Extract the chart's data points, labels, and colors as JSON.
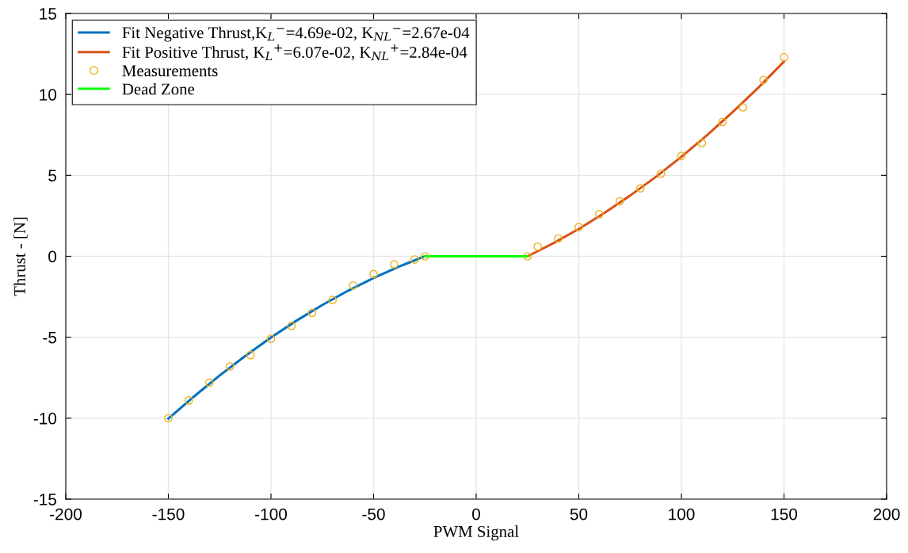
{
  "chart_data": {
    "type": "line",
    "xlabel": "PWM Signal",
    "ylabel": "Thrust - [N]",
    "xlim": [
      -200,
      200
    ],
    "xticks": [
      -200,
      -150,
      -100,
      -50,
      0,
      50,
      100,
      150,
      200
    ],
    "ylim": [
      -15,
      15
    ],
    "yticks": [
      -15,
      -10,
      -5,
      0,
      5,
      10,
      15
    ],
    "grid": true,
    "legend": "top left",
    "series": [
      {
        "name": "Fit Negative Thrust,K$_{L}$$^{−}$=4.69e-02, K$_{NL}$$^{−}$=2.67e-04",
        "color": "#0072bd",
        "x": [
          -150,
          -137.5,
          -125,
          -112.5,
          -100,
          -87.5,
          -75,
          -62.5,
          -50,
          -37.5,
          -25
        ],
        "values": [
          -10.03,
          -8.66,
          -7.36,
          -6.15,
          -5.02,
          -3.97,
          -3.01,
          -2.13,
          -1.34,
          -0.63,
          0
        ]
      },
      {
        "name": "Fit Positive Thrust, K$_{L}$$^{+}$=6.07e-02, K$_{NL}$$^{+}$=2.84e-04",
        "color": "#d95319",
        "x": [
          25,
          37.5,
          50,
          62.5,
          75,
          87.5,
          100,
          112.5,
          125,
          137.5,
          150
        ],
        "values": [
          0,
          0.8,
          1.69,
          2.68,
          3.75,
          4.9,
          6.15,
          7.48,
          8.91,
          10.42,
          12.03
        ]
      },
      {
        "name": "Measurements",
        "type": "scatter",
        "marker": "circle",
        "color": "#edb120",
        "x": [
          -150,
          -140,
          -130,
          -120,
          -110,
          -100,
          -90,
          -80,
          -70,
          -60,
          -50,
          -40,
          -30,
          -25,
          25,
          30,
          40,
          50,
          60,
          70,
          80,
          90,
          100,
          110,
          120,
          130,
          140,
          150
        ],
        "values": [
          -10.0,
          -8.9,
          -7.8,
          -6.8,
          -6.1,
          -5.1,
          -4.3,
          -3.5,
          -2.7,
          -1.8,
          -1.1,
          -0.5,
          -0.2,
          0,
          0,
          0.6,
          1.1,
          1.8,
          2.6,
          3.4,
          4.2,
          5.1,
          6.2,
          7.0,
          8.3,
          9.2,
          10.9,
          12.3
        ]
      },
      {
        "name": "Dead Zone",
        "color": "#00ff00",
        "x": [
          -25,
          25
        ],
        "values": [
          0,
          0
        ]
      }
    ]
  }
}
